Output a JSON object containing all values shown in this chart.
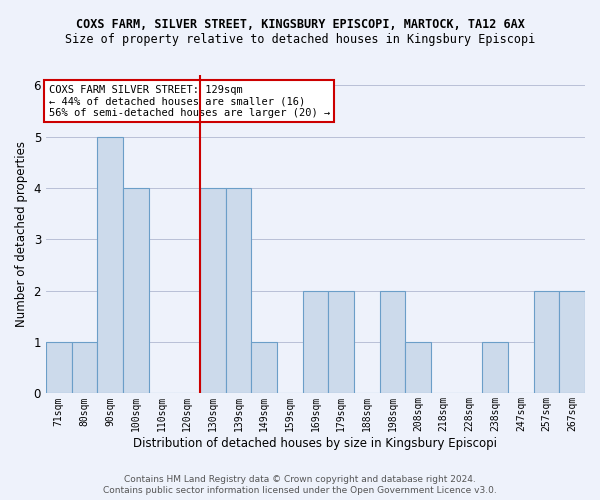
{
  "title1": "COXS FARM, SILVER STREET, KINGSBURY EPISCOPI, MARTOCK, TA12 6AX",
  "title2": "Size of property relative to detached houses in Kingsbury Episcopi",
  "xlabel": "Distribution of detached houses by size in Kingsbury Episcopi",
  "ylabel": "Number of detached properties",
  "categories": [
    "71sqm",
    "80sqm",
    "90sqm",
    "100sqm",
    "110sqm",
    "120sqm",
    "130sqm",
    "139sqm",
    "149sqm",
    "159sqm",
    "169sqm",
    "179sqm",
    "188sqm",
    "198sqm",
    "208sqm",
    "218sqm",
    "228sqm",
    "238sqm",
    "247sqm",
    "257sqm",
    "267sqm"
  ],
  "values": [
    1,
    1,
    5,
    4,
    0,
    0,
    4,
    4,
    1,
    0,
    2,
    2,
    0,
    2,
    1,
    0,
    0,
    1,
    0,
    2,
    2
  ],
  "bar_color": "#ccdaeb",
  "bar_edge_color": "#6b9ec8",
  "highlight_line_color": "#cc0000",
  "annotation_title": "COXS FARM SILVER STREET: 129sqm",
  "annotation_line1": "← 44% of detached houses are smaller (16)",
  "annotation_line2": "56% of semi-detached houses are larger (20) →",
  "annotation_box_color": "#ffffff",
  "annotation_box_edge_color": "#cc0000",
  "ylim": [
    0,
    6.2
  ],
  "yticks": [
    0,
    1,
    2,
    3,
    4,
    5,
    6
  ],
  "background_color": "#eef2fb",
  "grid_color": "#b0b8d0",
  "footer1": "Contains HM Land Registry data © Crown copyright and database right 2024.",
  "footer2": "Contains public sector information licensed under the Open Government Licence v3.0."
}
